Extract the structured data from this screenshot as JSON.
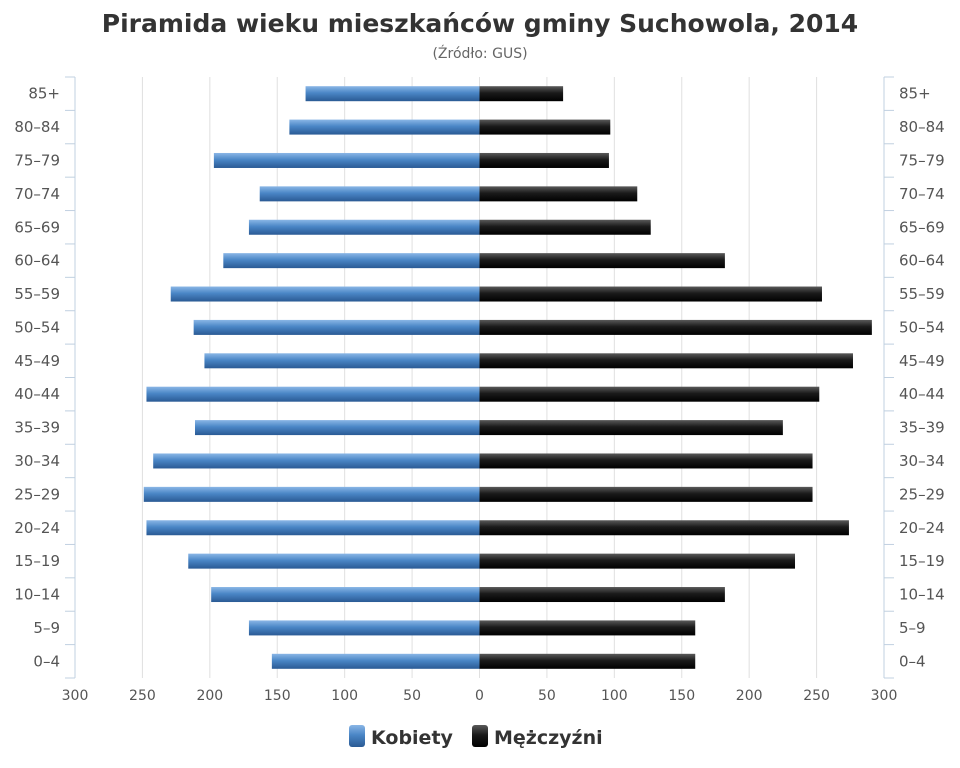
{
  "chart_data": {
    "type": "bar",
    "orientation": "horizontal",
    "layout": "population-pyramid",
    "title": "Piramida wieku mieszkańców gminy Suchowola, 2014",
    "subtitle": "(Źródło: GUS)",
    "categories": [
      "85+",
      "80–84",
      "75–79",
      "70–74",
      "65–69",
      "60–64",
      "55–59",
      "50–54",
      "45–49",
      "40–44",
      "35–39",
      "30–34",
      "25–29",
      "20–24",
      "15–19",
      "10–14",
      "5–9",
      "0–4"
    ],
    "xlim": [
      -300,
      300
    ],
    "x_ticks": [
      -300,
      -250,
      -200,
      -150,
      -100,
      -50,
      0,
      50,
      100,
      150,
      200,
      250,
      300
    ],
    "x_tick_labels": [
      "300",
      "250",
      "200",
      "150",
      "100",
      "50",
      "0",
      "50",
      "100",
      "150",
      "200",
      "250",
      "300"
    ],
    "grid": "vertical",
    "legend_position": "bottom-center",
    "series": [
      {
        "name": "Kobiety",
        "side": "left",
        "color": "#4a86c6",
        "values": [
          129,
          141,
          197,
          163,
          171,
          190,
          229,
          212,
          204,
          247,
          211,
          242,
          249,
          247,
          216,
          199,
          171,
          154
        ]
      },
      {
        "name": "Mężczyźni",
        "side": "right",
        "color": "#1a1a1a",
        "values": [
          62,
          97,
          96,
          117,
          127,
          182,
          254,
          291,
          277,
          252,
          225,
          247,
          247,
          274,
          234,
          182,
          160,
          160
        ]
      }
    ]
  }
}
